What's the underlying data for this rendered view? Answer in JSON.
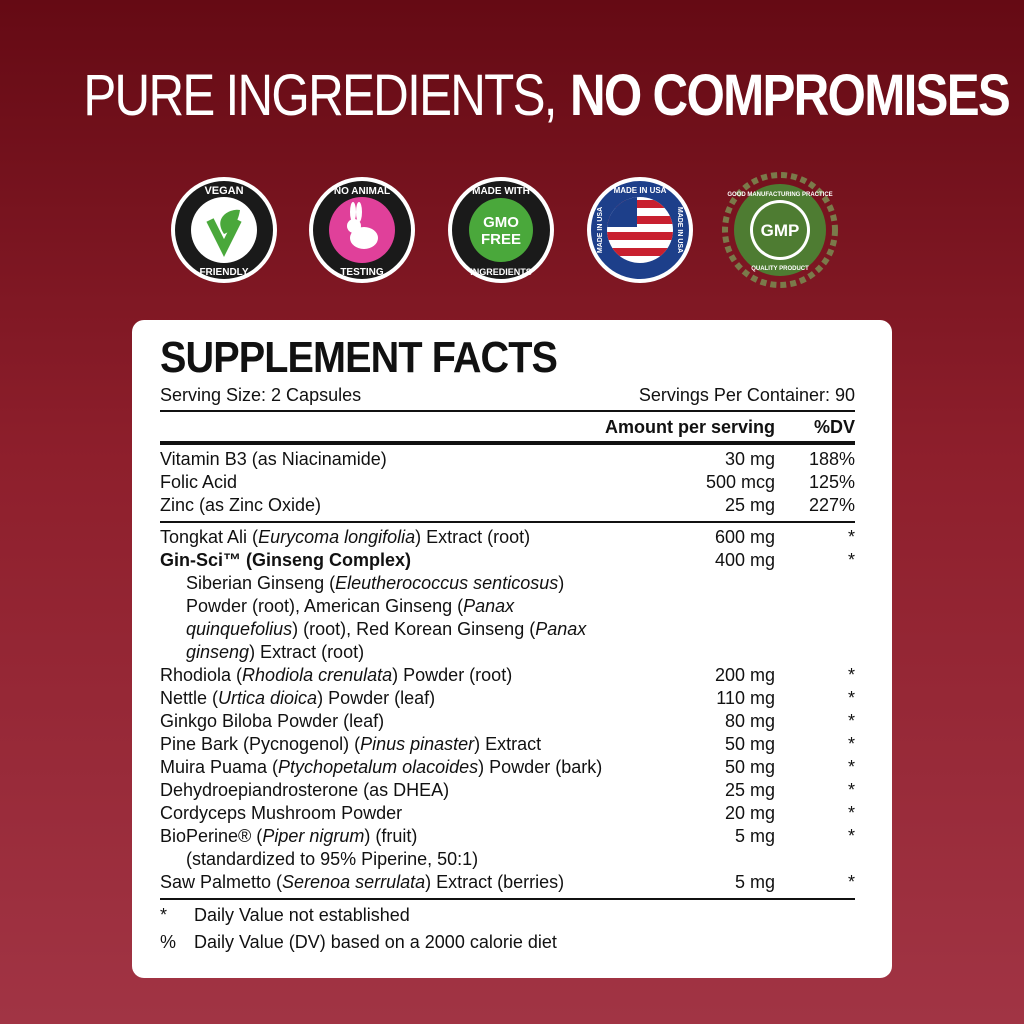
{
  "header": {
    "title_light": "PURE INGREDIENTS,",
    "title_bold": "NO COMPROMISES"
  },
  "badges": [
    {
      "top": "VEGAN",
      "bottom": "FRIENDLY"
    },
    {
      "top": "NO ANIMAL",
      "bottom": "TESTING"
    },
    {
      "top": "MADE WITH",
      "middle": [
        "GMO",
        "FREE"
      ],
      "bottom": "INGREDIENTS"
    },
    {
      "top": "MADE IN USA",
      "left": "MADE IN USA",
      "right": "MADE IN USA"
    },
    {
      "top": "GOOD MANUFACTURING PRACTICE",
      "middle": [
        "GMP"
      ],
      "bottom": "QUALITY PRODUCT"
    }
  ],
  "facts": {
    "title": "SUPPLEMENT FACTS",
    "serving_size": "Serving Size: 2 Capsules",
    "servings_per_container": "Servings Per Container: 90",
    "columns": [
      "Amount per serving",
      "%DV"
    ],
    "vitamins": [
      {
        "name": [
          "Vitamin B3 (as Niacinamide)"
        ],
        "amount": "30 mg",
        "dv": "188%"
      },
      {
        "name": [
          "Folic Acid"
        ],
        "amount": "500 mcg",
        "dv": "125%"
      },
      {
        "name": [
          "Zinc (as Zinc Oxide)"
        ],
        "amount": "25 mg",
        "dv": "227%"
      }
    ],
    "ingredients": [
      {
        "name": [
          "Tongkat Ali (",
          "Eurycoma longifolia",
          ") Extract (root)"
        ],
        "amount": "600 mg",
        "dv": "*"
      },
      {
        "name": [
          "Gin-Sci™ (Ginseng Complex)"
        ],
        "bold": true,
        "amount": "400 mg",
        "dv": "*",
        "sub": [
          "Siberian Ginseng (",
          "Eleutherococcus senticosus",
          ") Powder (root), American Ginseng (",
          "Panax quinquefolius",
          ") (root), Red Korean Ginseng (",
          "Panax ginseng",
          ") Extract (root)"
        ]
      },
      {
        "name": [
          "Rhodiola (",
          "Rhodiola crenulata",
          ") Powder (root)"
        ],
        "amount": "200 mg",
        "dv": "*"
      },
      {
        "name": [
          "Nettle (",
          "Urtica dioica",
          ") Powder (leaf)"
        ],
        "amount": "110 mg",
        "dv": "*"
      },
      {
        "name": [
          "Ginkgo Biloba Powder (leaf)"
        ],
        "amount": "80 mg",
        "dv": "*"
      },
      {
        "name": [
          "Pine Bark (Pycnogenol) (",
          "Pinus pinaster",
          ") Extract"
        ],
        "amount": "50 mg",
        "dv": "*"
      },
      {
        "name": [
          "Muira Puama (",
          "Ptychopetalum olacoides",
          ") Powder (bark)"
        ],
        "amount": "50 mg",
        "dv": "*"
      },
      {
        "name": [
          "Dehydroepiandrosterone (as DHEA)"
        ],
        "amount": "25 mg",
        "dv": "*"
      },
      {
        "name": [
          "Cordyceps Mushroom Powder"
        ],
        "amount": "20 mg",
        "dv": "*"
      },
      {
        "name": [
          "BioPerine® (",
          "Piper nigrum",
          ") (fruit)"
        ],
        "amount": "5 mg",
        "dv": "*",
        "sub": [
          "(standardized to 95% Piperine, 50:1)"
        ]
      },
      {
        "name": [
          "Saw Palmetto (",
          "Serenoa serrulata",
          ") Extract (berries)"
        ],
        "amount": "5 mg",
        "dv": "*"
      }
    ],
    "footnotes": [
      {
        "symbol": "*",
        "text": "Daily Value not established"
      },
      {
        "symbol": "%",
        "text": "Daily Value (DV) based on a 2000 calorie diet"
      }
    ]
  }
}
